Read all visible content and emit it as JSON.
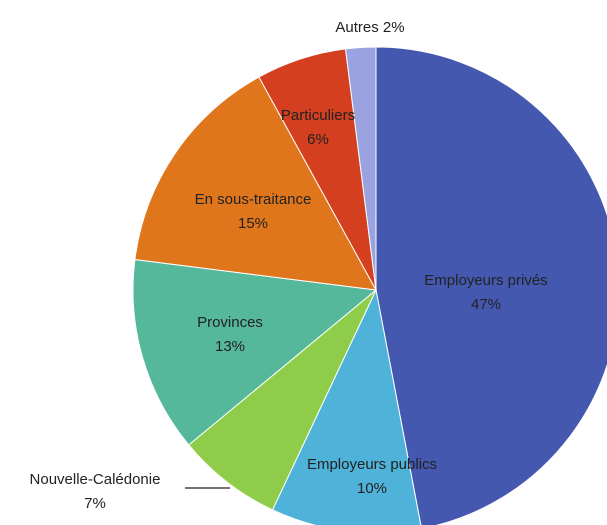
{
  "chart_data": {
    "type": "pie",
    "categories": [
      "Employeurs privés",
      "Employeurs publics",
      "Nouvelle-Calédonie",
      "Provinces",
      "En sous-traitance",
      "Particuliers",
      "Autres"
    ],
    "values": [
      47,
      10,
      7,
      13,
      15,
      6,
      2
    ],
    "value_labels": [
      "47%",
      "10%",
      "7%",
      "13%",
      "15%",
      "6%",
      "2%"
    ],
    "colors": [
      "#4558b0",
      "#4fb3d9",
      "#8fcc4a",
      "#55b89a",
      "#e0761c",
      "#d43f1f",
      "#9aa3e0"
    ]
  }
}
